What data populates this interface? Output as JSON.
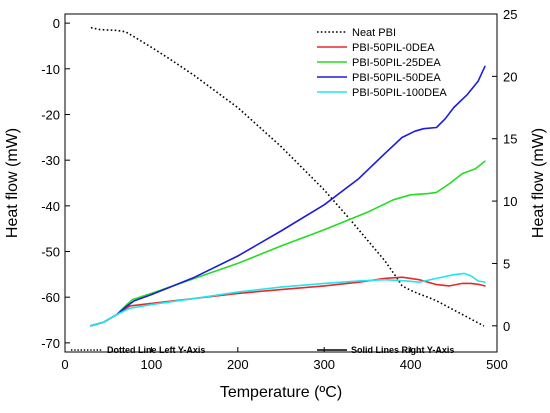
{
  "chart_data": {
    "type": "line",
    "xlabel": "Temperature (ºC)",
    "ylabel_left": "Heat flow (mW)",
    "ylabel_right": "Heat flow (mW)",
    "xlim": [
      0,
      500
    ],
    "ylim_left": [
      -72,
      2
    ],
    "ylim_right": [
      -2.1,
      25
    ],
    "x_ticks": [
      0,
      100,
      200,
      300,
      400,
      500
    ],
    "y_left_ticks": [
      0,
      -10,
      -20,
      -30,
      -40,
      -50,
      -60,
      -70
    ],
    "y_right_ticks": [
      0,
      5,
      10,
      15,
      20,
      25
    ],
    "grid": false,
    "legend_position": "top-right",
    "note_left": "Dotted Line Left Y-Axis",
    "note_right": "Solid Lines Right Y-Axis",
    "series": [
      {
        "name": "Neat PBI",
        "axis": "left",
        "style": "dotted",
        "color": "#000000",
        "points": [
          [
            30,
            -1
          ],
          [
            40,
            -1.4
          ],
          [
            50,
            -1.5
          ],
          [
            60,
            -1.6
          ],
          [
            70,
            -1.9
          ],
          [
            80,
            -3
          ],
          [
            100,
            -5.3
          ],
          [
            120,
            -7.7
          ],
          [
            150,
            -11.5
          ],
          [
            200,
            -18.5
          ],
          [
            250,
            -27
          ],
          [
            300,
            -36.5
          ],
          [
            330,
            -43
          ],
          [
            350,
            -47.5
          ],
          [
            370,
            -52
          ],
          [
            385,
            -56
          ],
          [
            390,
            -57.5
          ],
          [
            400,
            -58.5
          ],
          [
            410,
            -59.3
          ],
          [
            420,
            -60
          ],
          [
            430,
            -60.8
          ],
          [
            440,
            -61.8
          ],
          [
            460,
            -63.8
          ],
          [
            485,
            -66.3
          ]
        ]
      },
      {
        "name": "PBI-50PIL-0DEA",
        "axis": "right",
        "style": "solid",
        "color": "#e8292b",
        "points": [
          [
            30,
            0
          ],
          [
            45,
            0.3
          ],
          [
            60,
            0.9
          ],
          [
            75,
            1.6
          ],
          [
            100,
            1.8
          ],
          [
            150,
            2.2
          ],
          [
            200,
            2.6
          ],
          [
            250,
            2.9
          ],
          [
            300,
            3.2
          ],
          [
            340,
            3.5
          ],
          [
            370,
            3.8
          ],
          [
            390,
            3.9
          ],
          [
            410,
            3.7
          ],
          [
            430,
            3.3
          ],
          [
            445,
            3.2
          ],
          [
            460,
            3.4
          ],
          [
            470,
            3.4
          ],
          [
            480,
            3.3
          ],
          [
            486,
            3.2
          ]
        ]
      },
      {
        "name": "PBI-50PIL-25DEA",
        "axis": "right",
        "style": "solid",
        "color": "#22dd22",
        "points": [
          [
            30,
            0
          ],
          [
            45,
            0.3
          ],
          [
            60,
            0.9
          ],
          [
            70,
            1.6
          ],
          [
            78,
            2.1
          ],
          [
            100,
            2.6
          ],
          [
            150,
            3.8
          ],
          [
            200,
            5
          ],
          [
            250,
            6.4
          ],
          [
            300,
            7.7
          ],
          [
            350,
            9.1
          ],
          [
            380,
            10.1
          ],
          [
            400,
            10.5
          ],
          [
            420,
            10.6
          ],
          [
            430,
            10.7
          ],
          [
            445,
            11.4
          ],
          [
            460,
            12.2
          ],
          [
            475,
            12.6
          ],
          [
            486,
            13.2
          ]
        ]
      },
      {
        "name": "PBI-50PIL-50DEA",
        "axis": "right",
        "style": "solid",
        "color": "#1c1cdd",
        "points": [
          [
            30,
            0
          ],
          [
            45,
            0.3
          ],
          [
            60,
            0.9
          ],
          [
            70,
            1.5
          ],
          [
            80,
            2
          ],
          [
            100,
            2.5
          ],
          [
            150,
            3.9
          ],
          [
            200,
            5.6
          ],
          [
            250,
            7.6
          ],
          [
            300,
            9.7
          ],
          [
            340,
            11.8
          ],
          [
            370,
            13.8
          ],
          [
            390,
            15.1
          ],
          [
            405,
            15.6
          ],
          [
            415,
            15.8
          ],
          [
            430,
            15.9
          ],
          [
            440,
            16.6
          ],
          [
            450,
            17.5
          ],
          [
            465,
            18.5
          ],
          [
            478,
            19.6
          ],
          [
            486,
            20.8
          ]
        ]
      },
      {
        "name": "PBI-50PIL-100DEA",
        "axis": "right",
        "style": "solid",
        "color": "#22e6ee",
        "points": [
          [
            30,
            0
          ],
          [
            45,
            0.3
          ],
          [
            60,
            0.9
          ],
          [
            75,
            1.4
          ],
          [
            100,
            1.7
          ],
          [
            150,
            2.2
          ],
          [
            200,
            2.7
          ],
          [
            250,
            3.1
          ],
          [
            300,
            3.4
          ],
          [
            340,
            3.6
          ],
          [
            370,
            3.7
          ],
          [
            395,
            3.6
          ],
          [
            410,
            3.5
          ],
          [
            430,
            3.8
          ],
          [
            450,
            4.1
          ],
          [
            462,
            4.2
          ],
          [
            470,
            4
          ],
          [
            478,
            3.6
          ],
          [
            486,
            3.5
          ]
        ]
      }
    ]
  }
}
